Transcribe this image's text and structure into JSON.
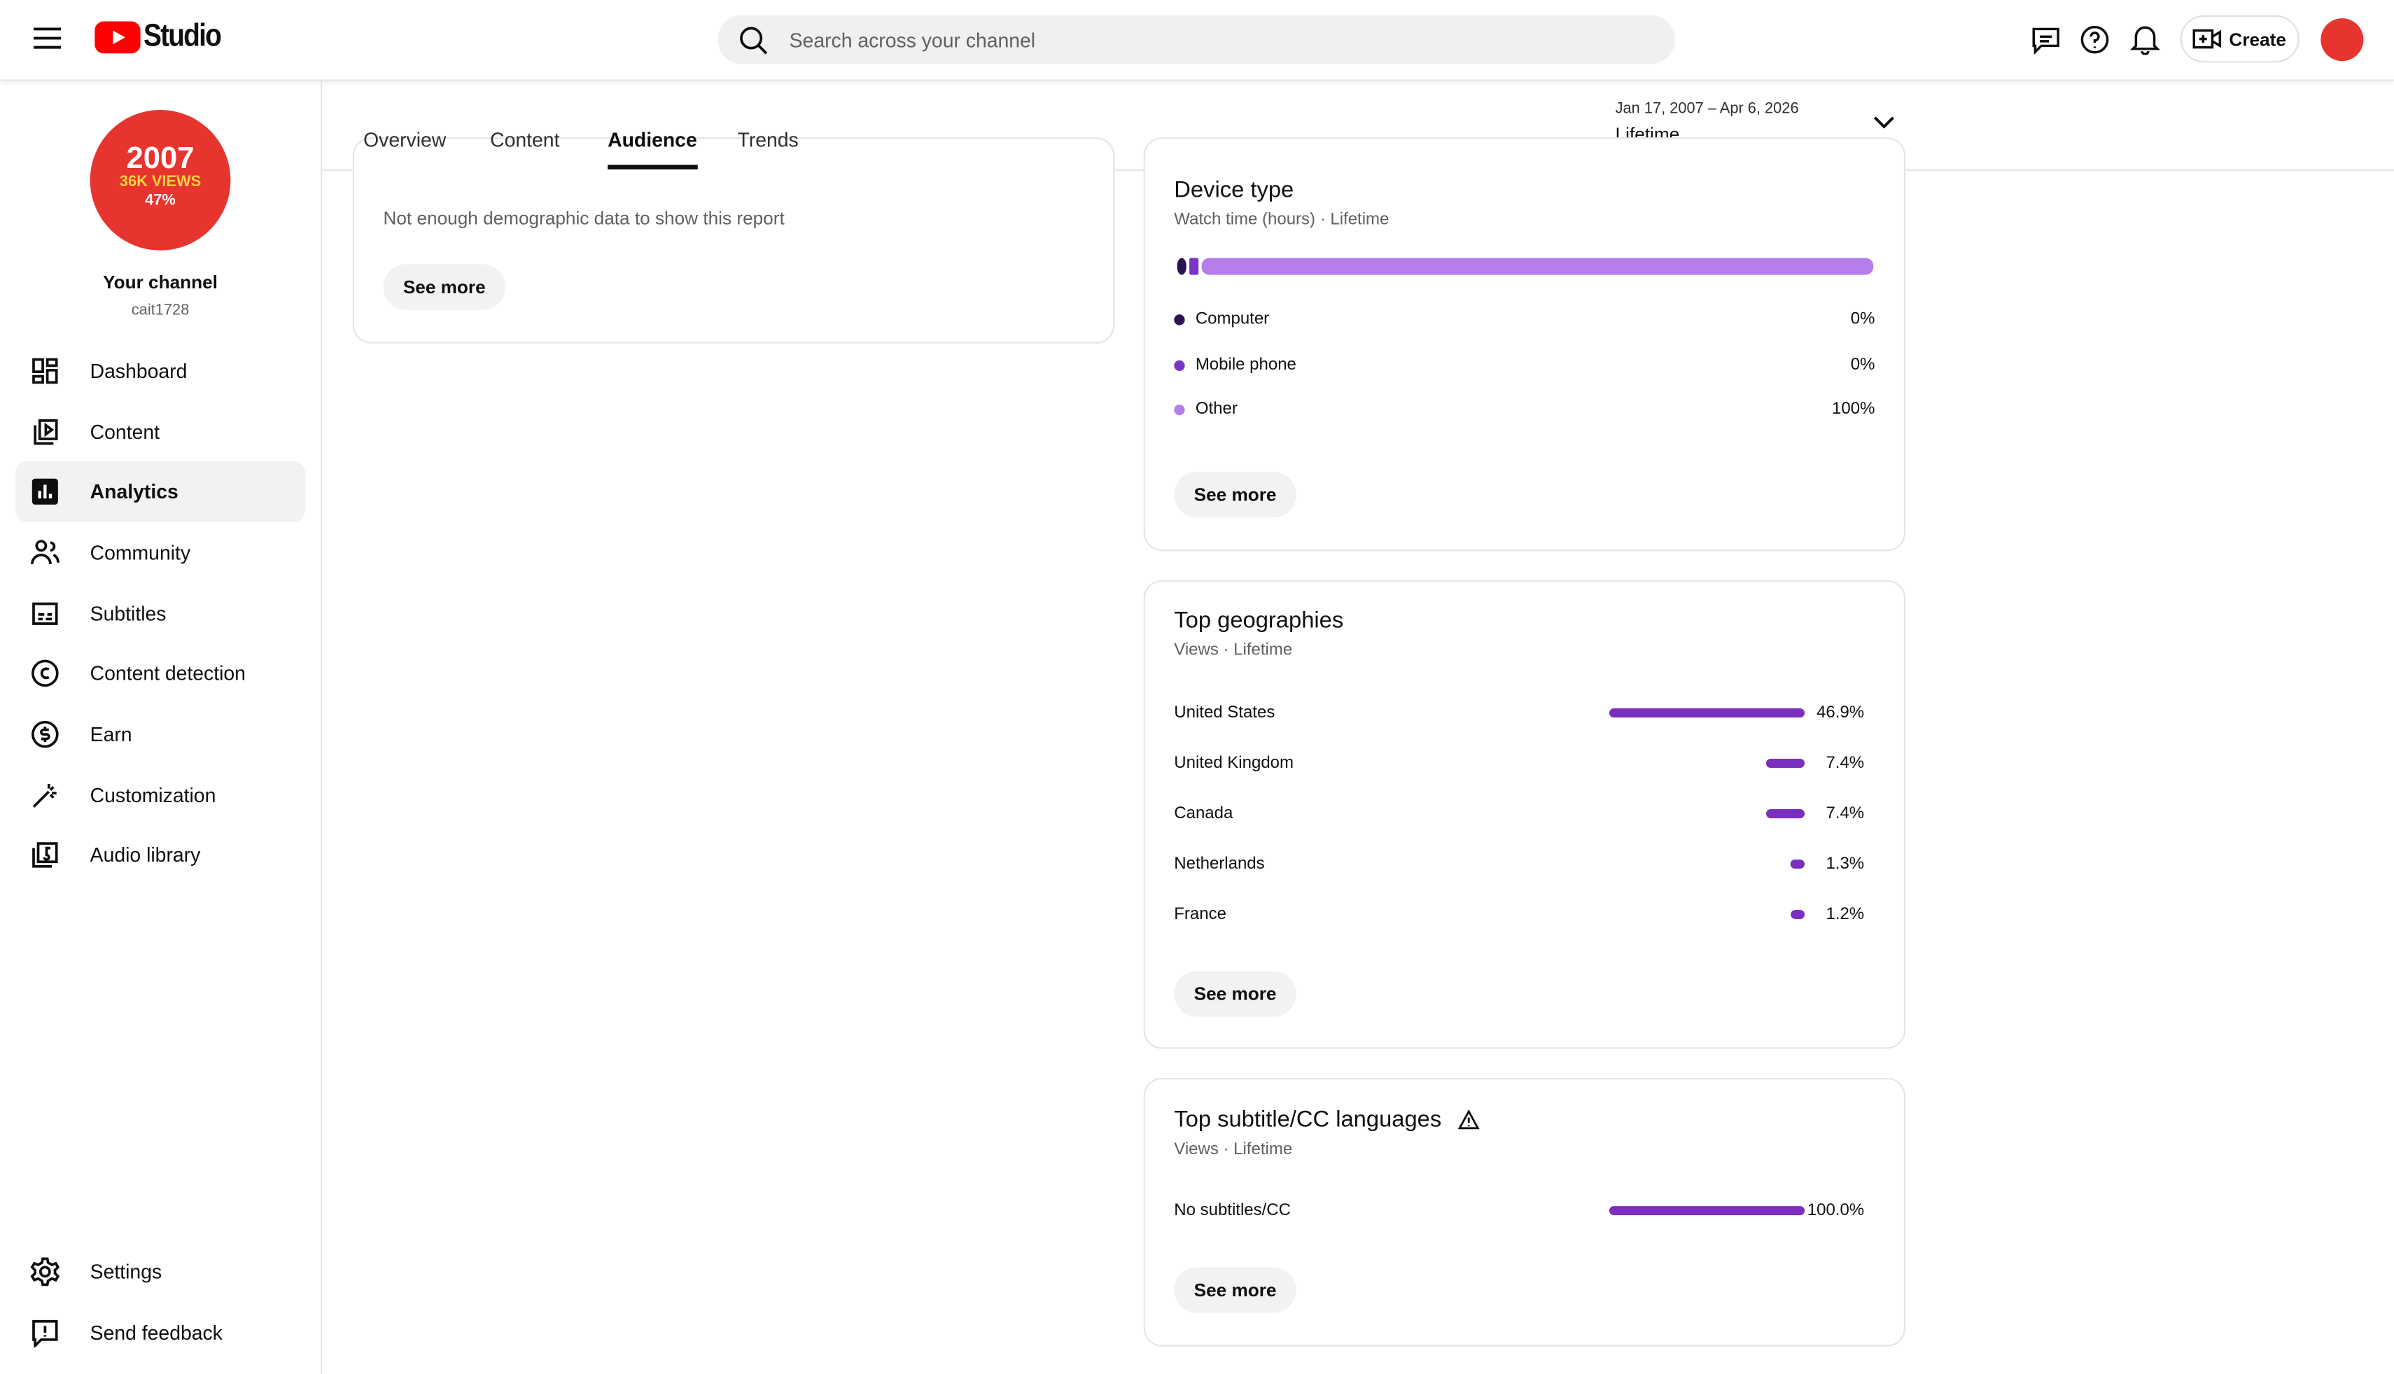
{
  "header": {
    "logo_text": "Studio",
    "search_placeholder": "Search across your channel",
    "create_label": "Create"
  },
  "channel": {
    "avatar_lines": [
      "2007",
      "36K VIEWS",
      "47%"
    ],
    "name": "Your channel",
    "handle": "cait1728"
  },
  "sidebar": {
    "items": [
      "Dashboard",
      "Content",
      "Analytics",
      "Community",
      "Subtitles",
      "Content detection",
      "Earn",
      "Customization",
      "Audio library"
    ],
    "active": "Analytics",
    "footer_items": [
      "Settings",
      "Send feedback"
    ]
  },
  "tabs": {
    "items": [
      "Overview",
      "Content",
      "Audience",
      "Trends"
    ],
    "active": "Audience"
  },
  "date_range": {
    "range": "Jan 17, 2007 – Apr 6, 2026",
    "label": "Lifetime"
  },
  "demographics_card": {
    "message": "Not enough demographic data to show this report",
    "button": "See more"
  },
  "device_type": {
    "title": "Device type",
    "subtitle": "Watch time (hours) · Lifetime",
    "button": "See more",
    "items": [
      {
        "name": "Computer",
        "value": 0,
        "label": "0%",
        "color": "#2b1052"
      },
      {
        "name": "Mobile phone",
        "value": 0,
        "label": "0%",
        "color": "#7a35c4"
      },
      {
        "name": "Other",
        "value": 100,
        "label": "100%",
        "color": "#b57ee8"
      }
    ]
  },
  "top_geographies": {
    "title": "Top geographies",
    "subtitle": "Views · Lifetime",
    "button": "See more",
    "color": "#7b2fbf",
    "items": [
      {
        "name": "United States",
        "value": 46.9,
        "label": "46.9%"
      },
      {
        "name": "United Kingdom",
        "value": 7.4,
        "label": "7.4%"
      },
      {
        "name": "Canada",
        "value": 7.4,
        "label": "7.4%"
      },
      {
        "name": "Netherlands",
        "value": 1.3,
        "label": "1.3%"
      },
      {
        "name": "France",
        "value": 1.2,
        "label": "1.2%"
      }
    ]
  },
  "top_subtitle_languages": {
    "title": "Top subtitle/CC languages",
    "subtitle": "Views · Lifetime",
    "button": "See more",
    "color": "#7b2fbf",
    "items": [
      {
        "name": "No subtitles/CC",
        "value": 100.0,
        "label": "100.0%"
      }
    ]
  }
}
